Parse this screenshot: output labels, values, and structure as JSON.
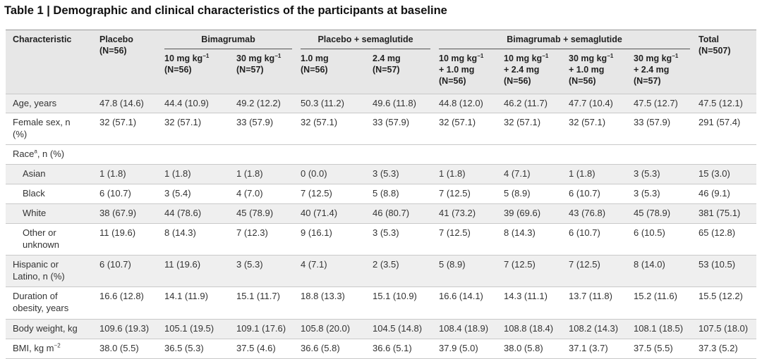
{
  "title": "Table 1 | Demographic and clinical characteristics of the participants at baseline",
  "table": {
    "header": {
      "stub": "Characteristic",
      "groups": [
        {
          "label": "Placebo",
          "n": "(N=56)"
        },
        {
          "label": "Bimagrumab",
          "columns": [
            {
              "dose": "10 mg kg",
              "sup": "−1",
              "n": "(N=56)"
            },
            {
              "dose": "30 mg kg",
              "sup": "−1",
              "n": "(N=57)"
            }
          ]
        },
        {
          "label": "Placebo + semaglutide",
          "columns": [
            {
              "dose": "1.0 mg",
              "n": "(N=56)"
            },
            {
              "dose": "2.4 mg",
              "n": "(N=57)"
            }
          ]
        },
        {
          "label": "Bimagrumab + semaglutide",
          "columns": [
            {
              "dose": "10 mg kg",
              "sup": "−1",
              "plus": "+ 1.0 mg",
              "n": "(N=56)"
            },
            {
              "dose": "10 mg kg",
              "sup": "−1",
              "plus": "+ 2.4 mg",
              "n": "(N=56)"
            },
            {
              "dose": "30 mg kg",
              "sup": "−1",
              "plus": "+ 1.0 mg",
              "n": "(N=56)"
            },
            {
              "dose": "30 mg kg",
              "sup": "−1",
              "plus": "+ 2.4 mg",
              "n": "(N=57)"
            }
          ]
        },
        {
          "label": "Total",
          "n": "(N=507)"
        }
      ]
    },
    "rows": [
      {
        "label": "Age, years",
        "cells": [
          "47.8 (14.6)",
          "44.4 (10.9)",
          "49.2 (12.2)",
          "50.3 (11.2)",
          "49.6 (11.8)",
          "44.8 (12.0)",
          "46.2 (11.7)",
          "47.7 (10.4)",
          "47.5 (12.7)",
          "47.5 (12.1)"
        ]
      },
      {
        "label": "Female sex, n (%)",
        "cells": [
          "32 (57.1)",
          "32 (57.1)",
          "33 (57.9)",
          "32 (57.1)",
          "33 (57.9)",
          "32 (57.1)",
          "32 (57.1)",
          "32 (57.1)",
          "33 (57.9)",
          "291 (57.4)"
        ]
      },
      {
        "label": "Race",
        "sup": "a",
        "suffix": ", n (%)",
        "sub_rows": [
          {
            "label": "Asian",
            "cells": [
              "1 (1.8)",
              "1 (1.8)",
              "1 (1.8)",
              "0 (0.0)",
              "3 (5.3)",
              "1 (1.8)",
              "4 (7.1)",
              "1 (1.8)",
              "3 (5.3)",
              "15 (3.0)"
            ]
          },
          {
            "label": "Black",
            "cells": [
              "6 (10.7)",
              "3 (5.4)",
              "4 (7.0)",
              "7 (12.5)",
              "5 (8.8)",
              "7 (12.5)",
              "5 (8.9)",
              "6 (10.7)",
              "3 (5.3)",
              "46 (9.1)"
            ]
          },
          {
            "label": "White",
            "cells": [
              "38 (67.9)",
              "44 (78.6)",
              "45 (78.9)",
              "40 (71.4)",
              "46 (80.7)",
              "41 (73.2)",
              "39 (69.6)",
              "43 (76.8)",
              "45 (78.9)",
              "381 (75.1)"
            ]
          },
          {
            "label": "Other or unknown",
            "cells": [
              "11 (19.6)",
              "8 (14.3)",
              "7 (12.3)",
              "9 (16.1)",
              "3 (5.3)",
              "7 (12.5)",
              "8 (14.3)",
              "6 (10.7)",
              "6 (10.5)",
              "65 (12.8)"
            ]
          }
        ]
      },
      {
        "label": "Hispanic or Latino, n (%)",
        "cells": [
          "6 (10.7)",
          "11 (19.6)",
          "3 (5.3)",
          "4 (7.1)",
          "2 (3.5)",
          "5 (8.9)",
          "7 (12.5)",
          "7 (12.5)",
          "8 (14.0)",
          "53 (10.5)"
        ]
      },
      {
        "label": "Duration of obesity, years",
        "cells": [
          "16.6 (12.8)",
          "14.1 (11.9)",
          "15.1 (11.7)",
          "18.8 (13.3)",
          "15.1 (10.9)",
          "16.6 (14.1)",
          "14.3 (11.1)",
          "13.7 (11.8)",
          "15.2 (11.6)",
          "15.5 (12.2)"
        ]
      },
      {
        "label": "Body weight, kg",
        "cells": [
          "109.6 (19.3)",
          "105.1 (19.5)",
          "109.1 (17.6)",
          "105.8 (20.0)",
          "104.5 (14.8)",
          "108.4 (18.9)",
          "108.8 (18.4)",
          "108.2 (14.3)",
          "108.1 (18.5)",
          "107.5 (18.0)"
        ]
      },
      {
        "label": "BMI, kg m",
        "sup": "−2",
        "cells": [
          "38.0 (5.5)",
          "36.5 (5.3)",
          "37.5 (4.6)",
          "36.6 (5.8)",
          "36.6 (5.1)",
          "37.9 (5.0)",
          "38.0 (5.8)",
          "37.1 (3.7)",
          "37.5 (5.5)",
          "37.3 (5.2)"
        ]
      }
    ]
  }
}
